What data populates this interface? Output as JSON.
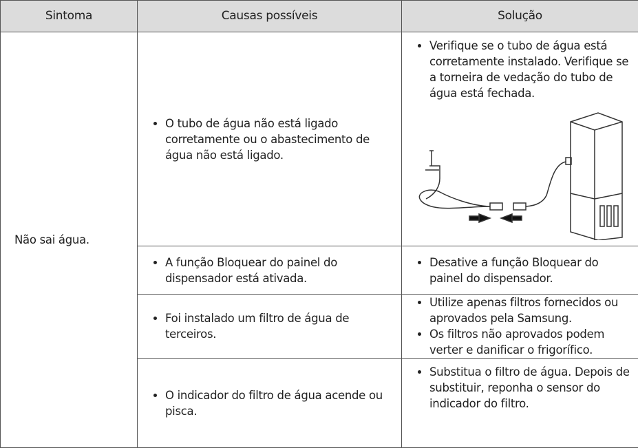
{
  "table": {
    "header": [
      "Sintoma",
      "Causas possíveis",
      "Solução"
    ],
    "symptom": "Não sai água.",
    "rows": [
      {
        "cause": "O tubo de água não está ligado corretamente ou o abastecimento de água não está ligado.",
        "solutions": [
          "Verifique se o tubo de água está corretamente instalado. Verifique se a torneira de vedação do tubo de água está fechada."
        ]
      },
      {
        "cause": "A função Bloquear do painel do dispensador está ativada.",
        "solutions": [
          "Desative a função Bloquear do painel do dispensador."
        ]
      },
      {
        "cause": "Foi instalado um filtro de água de terceiros.",
        "solutions": [
          "Utilize apenas filtros fornecidos ou aprovados pela Samsung.",
          "Os filtros não aprovados podem verter e danificar o frigorífico."
        ]
      },
      {
        "cause": "O indicador do filtro de água acende ou pisca.",
        "solutions": [
          "Substitua o filtro de água. Depois de substituir, reponha o sensor do indicador do filtro."
        ]
      }
    ]
  }
}
